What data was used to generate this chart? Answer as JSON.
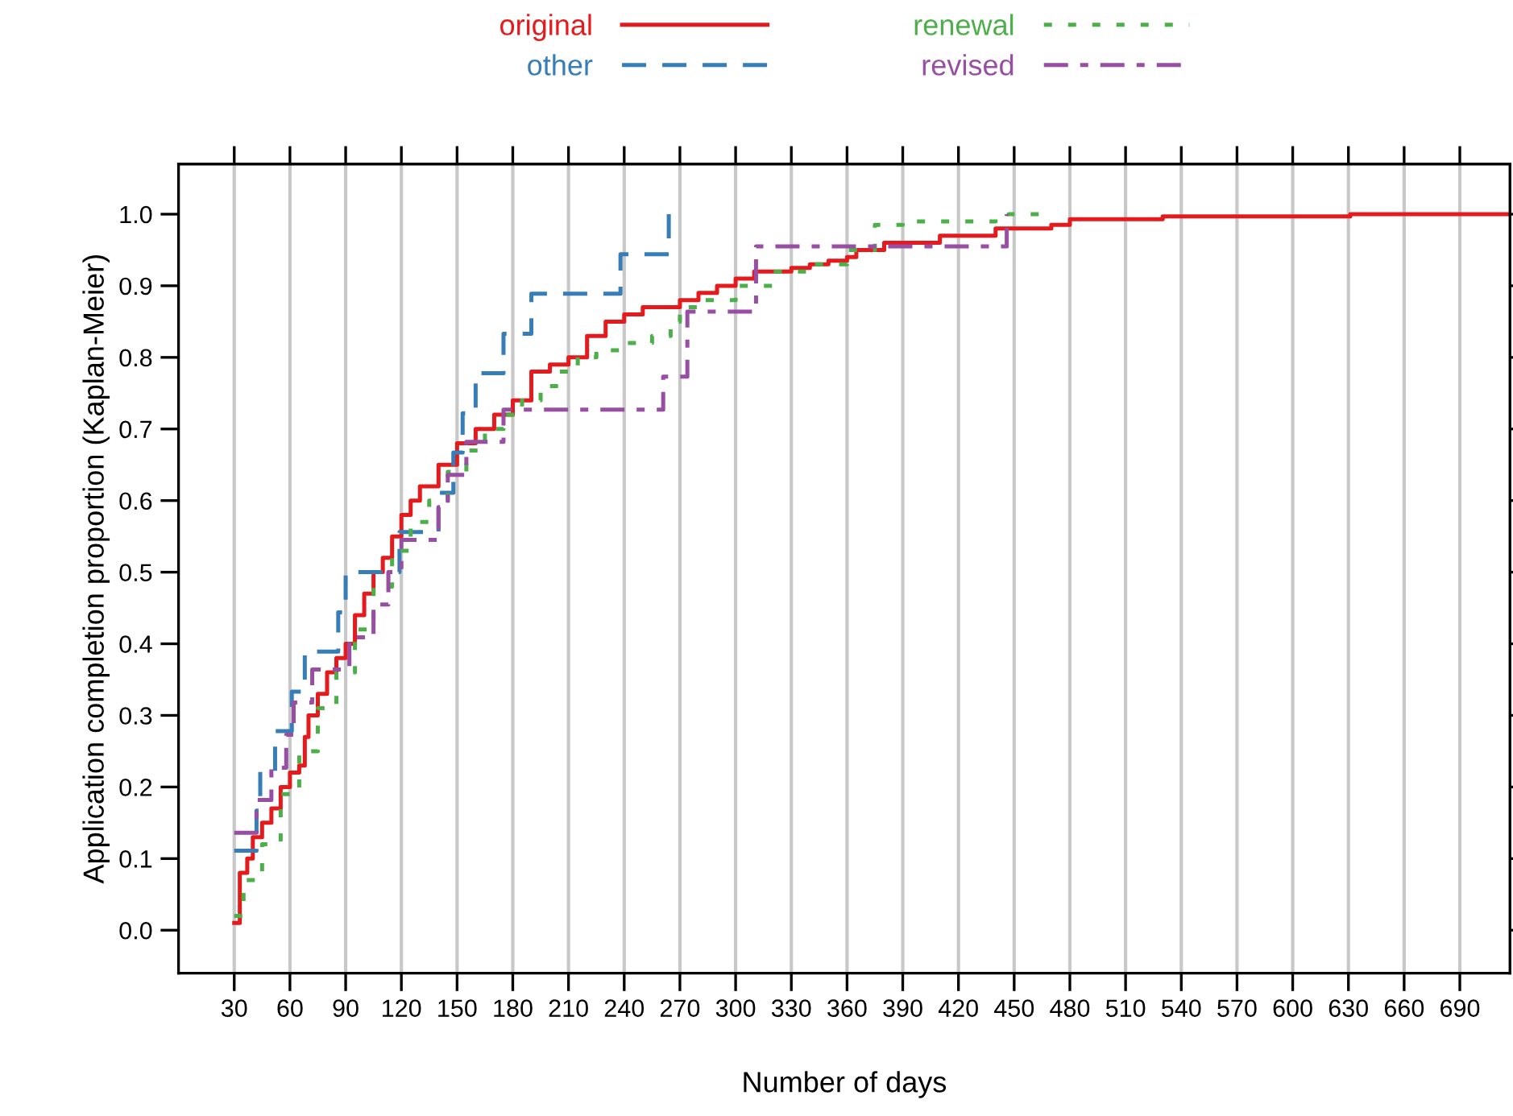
{
  "chart_data": {
    "type": "step",
    "xlabel": "Number of days",
    "ylabel": "Application completion proportion (Kaplan-Meier)",
    "xlim": [
      0,
      717
    ],
    "ylim": [
      -0.06,
      1.07
    ],
    "xticks": [
      30,
      60,
      90,
      120,
      150,
      180,
      210,
      240,
      270,
      300,
      330,
      360,
      390,
      420,
      450,
      480,
      510,
      540,
      570,
      600,
      630,
      660,
      690
    ],
    "yticks": [
      {
        "value": 0,
        "label": "0.0"
      },
      {
        "value": 0.1,
        "label": "0.1"
      },
      {
        "value": 0.2,
        "label": "0.2"
      },
      {
        "value": 0.3,
        "label": "0.3"
      },
      {
        "value": 0.4,
        "label": "0.4"
      },
      {
        "value": 0.5,
        "label": "0.5"
      },
      {
        "value": 0.6,
        "label": "0.6"
      },
      {
        "value": 0.7,
        "label": "0.7"
      },
      {
        "value": 0.8,
        "label": "0.8"
      },
      {
        "value": 0.9,
        "label": "0.9"
      },
      {
        "value": 1,
        "label": "1.0"
      }
    ],
    "grid": "x",
    "legend": "top",
    "series": [
      {
        "name": "original",
        "color": "#e41a1c",
        "line_style": "solid",
        "x": [
          30,
          33,
          37,
          40,
          45,
          50,
          55,
          60,
          65,
          68,
          70,
          75,
          80,
          85,
          90,
          95,
          100,
          105,
          110,
          115,
          120,
          125,
          130,
          140,
          150,
          160,
          170,
          180,
          190,
          200,
          210,
          220,
          230,
          240,
          250,
          260,
          270,
          280,
          290,
          300,
          310,
          320,
          330,
          340,
          350,
          360,
          365,
          380,
          400,
          410,
          430,
          440,
          460,
          470,
          480,
          530,
          631,
          717
        ],
        "values": [
          0.01,
          0.08,
          0.1,
          0.13,
          0.15,
          0.17,
          0.2,
          0.22,
          0.23,
          0.27,
          0.3,
          0.33,
          0.36,
          0.38,
          0.4,
          0.44,
          0.47,
          0.5,
          0.52,
          0.55,
          0.58,
          0.6,
          0.62,
          0.65,
          0.68,
          0.7,
          0.72,
          0.74,
          0.78,
          0.79,
          0.8,
          0.83,
          0.85,
          0.86,
          0.87,
          0.87,
          0.88,
          0.89,
          0.9,
          0.91,
          0.92,
          0.92,
          0.925,
          0.93,
          0.935,
          0.94,
          0.95,
          0.96,
          0.96,
          0.97,
          0.97,
          0.98,
          0.98,
          0.985,
          0.993,
          0.997,
          1.0,
          1.0
        ]
      },
      {
        "name": "other",
        "color": "#377eb8",
        "line_style": "dashed",
        "x": [
          30,
          42,
          44,
          52,
          61,
          68,
          86,
          90,
          119,
          140,
          148,
          153,
          160,
          175,
          190,
          238,
          264
        ],
        "values": [
          0.111,
          0.167,
          0.222,
          0.278,
          0.333,
          0.389,
          0.444,
          0.5,
          0.556,
          0.611,
          0.667,
          0.722,
          0.778,
          0.833,
          0.889,
          0.944,
          1.0
        ]
      },
      {
        "name": "renewal",
        "color": "#4daf4a",
        "line_style": "dotted",
        "x": [
          30,
          35,
          45,
          55,
          65,
          75,
          85,
          95,
          105,
          115,
          125,
          135,
          145,
          155,
          165,
          175,
          185,
          195,
          205,
          215,
          225,
          240,
          255,
          265,
          270,
          280,
          300,
          320,
          340,
          360,
          375,
          390,
          440,
          447,
          465
        ],
        "values": [
          0.02,
          0.07,
          0.12,
          0.19,
          0.25,
          0.31,
          0.36,
          0.42,
          0.48,
          0.53,
          0.57,
          0.6,
          0.64,
          0.67,
          0.7,
          0.72,
          0.74,
          0.76,
          0.78,
          0.8,
          0.81,
          0.82,
          0.83,
          0.85,
          0.87,
          0.88,
          0.9,
          0.92,
          0.93,
          0.95,
          0.985,
          0.99,
          0.995,
          1.0,
          1.0
        ]
      },
      {
        "name": "revised",
        "color": "#984ea3",
        "line_style": "dashdot",
        "x": [
          30,
          42,
          50,
          58,
          62,
          72,
          92,
          105,
          113,
          120,
          140,
          145,
          155,
          175,
          261,
          274,
          311,
          446
        ],
        "values": [
          0.136,
          0.182,
          0.227,
          0.273,
          0.318,
          0.364,
          0.409,
          0.455,
          0.5,
          0.545,
          0.591,
          0.636,
          0.682,
          0.727,
          0.773,
          0.864,
          0.955,
          1.0
        ]
      }
    ]
  }
}
